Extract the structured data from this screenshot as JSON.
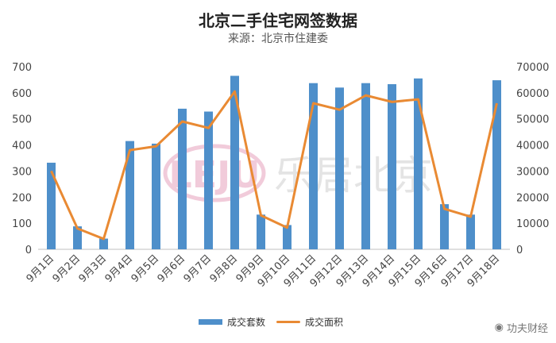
{
  "chart_data": {
    "type": "bar",
    "title": "北京二手住宅网签数据",
    "subtitle": "来源：北京市住建委",
    "categories": [
      "9月1日",
      "9月2日",
      "9月3日",
      "9月4日",
      "9月5日",
      "9月6日",
      "9月7日",
      "9月8日",
      "9月9日",
      "9月10日",
      "9月11日",
      "9月12日",
      "9月13日",
      "9月14日",
      "9月15日",
      "9月16日",
      "9月17日",
      "9月18日"
    ],
    "series": [
      {
        "name": "成交套数",
        "type": "bar",
        "axis": "left",
        "color": "#4e8fca",
        "values": [
          332,
          88,
          41,
          415,
          405,
          539,
          528,
          665,
          133,
          93,
          637,
          620,
          637,
          633,
          655,
          173,
          133,
          648
        ]
      },
      {
        "name": "成交面积",
        "type": "line",
        "axis": "right",
        "color": "#e98a33",
        "values": [
          30000,
          8000,
          4000,
          38000,
          39500,
          49000,
          46500,
          60500,
          13000,
          8300,
          56000,
          53500,
          59000,
          56500,
          57500,
          15500,
          12500,
          56000
        ]
      }
    ],
    "ylim_left": [
      0,
      700
    ],
    "yticks_left": [
      "0",
      "100",
      "200",
      "300",
      "400",
      "500",
      "600",
      "700"
    ],
    "ylim_right": [
      0,
      70000
    ],
    "yticks_right": [
      "0",
      "10000",
      "20000",
      "30000",
      "40000",
      "50000",
      "60000",
      "70000"
    ],
    "grid": false,
    "legend": "bottom"
  },
  "watermark": {
    "text": "乐居北京",
    "logo_text": "LEJU"
  },
  "corner_mark": {
    "text": "功夫财经"
  }
}
